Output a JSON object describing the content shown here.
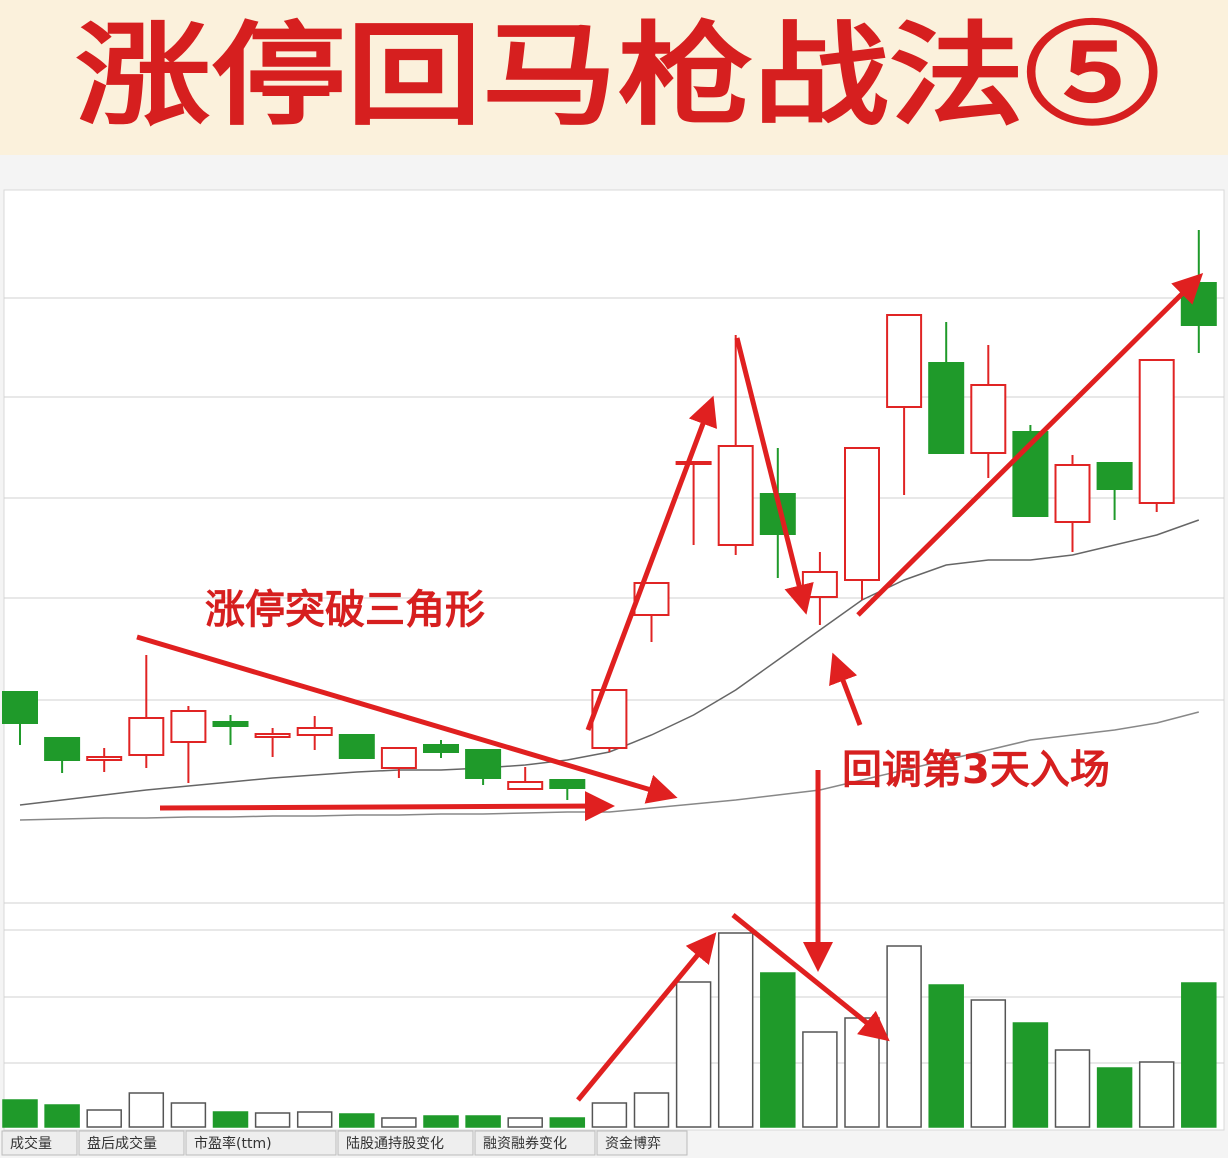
{
  "chart_data": {
    "type": "candlestick",
    "title": "涨停回马枪战法⑤",
    "annotations": [
      "涨停突破三角形",
      "回调第3天入场"
    ],
    "tabs": [
      "成交量",
      "盘后成交量",
      "市盈率(ttm)",
      "陆股通持股变化",
      "融资融券变化",
      "资金博弈"
    ],
    "up_color": "#e02424",
    "down_color": "#1f9a2a",
    "ylim": [
      0,
      71
    ],
    "volume_ylim": [
      0,
      197
    ],
    "open": [
      20.8,
      16.2,
      14.0,
      14.5,
      15.8,
      17.8,
      16.3,
      16.5,
      16.5,
      13.2,
      15.5,
      15.0,
      11.1,
      12.0,
      15.2,
      28.5,
      43.8,
      35.5,
      40.6,
      30.3,
      32.0,
      49.3,
      53.7,
      44.7,
      46.8,
      37.8,
      43.7,
      39.7,
      61.7
    ],
    "close": [
      17.7,
      14.0,
      14.3,
      18.2,
      18.9,
      17.4,
      16.6,
      17.2,
      14.2,
      15.2,
      14.8,
      12.2,
      11.8,
      11.2,
      21.0,
      31.7,
      43.8,
      45.4,
      36.6,
      32.8,
      45.2,
      58.5,
      44.7,
      51.5,
      38.4,
      43.5,
      41.1,
      54.0,
      57.5
    ],
    "high": [
      20.8,
      16.2,
      15.2,
      24.5,
      19.4,
      18.5,
      17.2,
      18.4,
      16.5,
      15.2,
      16.0,
      15.0,
      13.3,
      12.0,
      21.0,
      31.7,
      43.8,
      56.5,
      45.2,
      34.8,
      45.2,
      58.5,
      57.8,
      55.5,
      47.5,
      44.5,
      43.7,
      54.0,
      67.0
    ],
    "low": [
      15.5,
      12.7,
      12.8,
      13.2,
      11.7,
      15.5,
      14.3,
      15.0,
      14.2,
      12.2,
      14.2,
      11.5,
      11.0,
      10.0,
      14.8,
      25.8,
      35.5,
      34.5,
      32.2,
      27.5,
      30.0,
      40.5,
      44.7,
      42.2,
      38.4,
      34.8,
      38.0,
      38.8,
      54.7
    ],
    "volume": [
      27,
      22,
      17,
      34,
      24,
      15,
      14,
      15,
      13,
      9,
      11,
      11,
      9,
      9,
      24,
      34,
      145,
      194,
      154,
      95,
      109,
      181,
      142,
      127,
      104,
      77,
      59,
      65,
      144
    ],
    "lines": [
      {
        "color": "#666666",
        "values": [
          9.5,
          10.0,
          10.5,
          11.0,
          11.4,
          11.8,
          12.2,
          12.5,
          12.8,
          13.0,
          13.0,
          13.2,
          13.5,
          14.0,
          14.8,
          16.5,
          18.5,
          21.0,
          24.0,
          27.0,
          30.0,
          32.0,
          33.5,
          34.0,
          34.0,
          34.5,
          35.5,
          36.5,
          38.0
        ]
      },
      {
        "color": "#888888",
        "values": [
          8.0,
          8.1,
          8.2,
          8.2,
          8.3,
          8.3,
          8.4,
          8.4,
          8.5,
          8.5,
          8.6,
          8.6,
          8.7,
          8.8,
          8.8,
          9.2,
          9.6,
          10.0,
          10.5,
          11.0,
          12.0,
          13.0,
          14.0,
          15.0,
          16.0,
          16.5,
          17.0,
          17.7,
          18.8
        ]
      }
    ]
  }
}
